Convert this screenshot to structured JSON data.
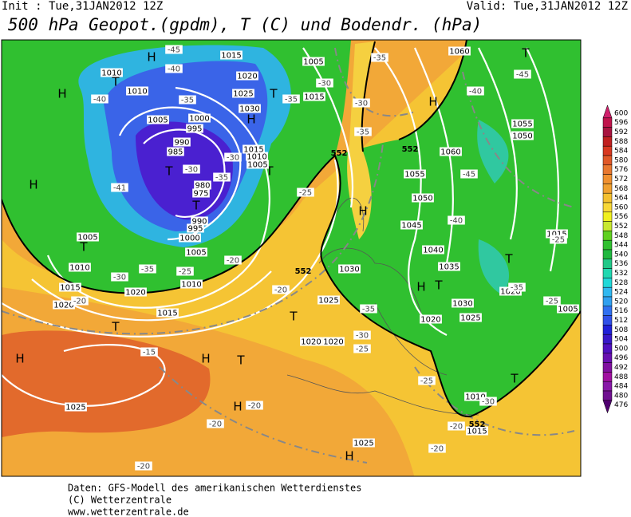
{
  "header": {
    "init": "Init : Tue,31JAN2012 12Z",
    "valid": "Valid: Tue,31JAN2012 12Z",
    "title": "500 hPa Geopot.(gpdm), T (C) und Bodendr. (hPa)"
  },
  "footer": [
    "Daten: GFS-Modell des amerikanischen Wetterdienstes",
    "(C) Wetterzentrale",
    "www.wetterzentrale.de"
  ],
  "colorbar": {
    "values": [
      600,
      596,
      592,
      588,
      584,
      580,
      576,
      572,
      568,
      564,
      560,
      556,
      552,
      548,
      544,
      540,
      536,
      532,
      528,
      524,
      520,
      516,
      512,
      508,
      504,
      500,
      496,
      492,
      488,
      484,
      480,
      476
    ],
    "colors": [
      "#d0206c",
      "#c0144c",
      "#a81440",
      "#c02020",
      "#d83820",
      "#e05828",
      "#e87830",
      "#f09030",
      "#f0a030",
      "#f4c030",
      "#f8d838",
      "#f0f020",
      "#c8e830",
      "#60d020",
      "#30c030",
      "#20b840",
      "#20c888",
      "#20d8b0",
      "#20d8d8",
      "#30b8f0",
      "#30a0f0",
      "#3070f0",
      "#3050e8",
      "#2020d8",
      "#3818c8",
      "#5010c0",
      "#6810b0",
      "#8010a0",
      "#a010a0",
      "#8818a8",
      "#701090",
      "#500070"
    ]
  },
  "centers": [
    "H",
    "T",
    "H",
    "H",
    "T",
    "T",
    "T",
    "T",
    "H",
    "T",
    "T",
    "H",
    "H",
    "T",
    "H",
    "T",
    "H",
    "H",
    "T",
    "T",
    "H",
    "T",
    "T",
    "H"
  ],
  "isobar_labels": [
    1015,
    1005,
    1010,
    1010,
    1005,
    1020,
    1025,
    1030,
    1000,
    995,
    990,
    985,
    980,
    975,
    990,
    995,
    1000,
    1005,
    1010,
    1015,
    1020,
    1015,
    1020,
    1010,
    1005,
    1015,
    1010,
    1005,
    1015,
    1060,
    1060,
    1055,
    1050,
    1045,
    1040,
    1035,
    1030,
    1030,
    1025,
    1020,
    1025,
    1020,
    1020,
    1055,
    1050,
    1015,
    1020,
    1005,
    1025,
    1025,
    1010,
    1015
  ],
  "isotherm_labels": [
    -45,
    -40,
    -40,
    -35,
    -35,
    -30,
    -30,
    -35,
    -40,
    -45,
    -30,
    -30,
    -35,
    -41,
    -25,
    -40,
    -45,
    -25,
    -35,
    -30,
    -25,
    -20,
    -20,
    -20,
    -35,
    -30,
    -25,
    -15,
    -20,
    -20,
    -20,
    -25,
    -20,
    -20,
    -30,
    -35,
    -25,
    -35
  ],
  "height_labels": [
    552,
    552,
    552,
    552
  ]
}
